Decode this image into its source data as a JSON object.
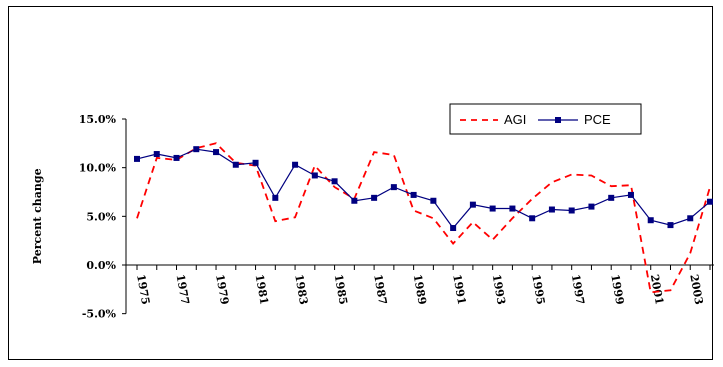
{
  "chart_data": {
    "type": "line",
    "title": "",
    "xlabel": "",
    "ylabel": "Percent change",
    "ylim": [
      -5,
      15
    ],
    "yticks": [
      "15.0%",
      "10.0%",
      "5.0%",
      "0.0%",
      "-5.0%"
    ],
    "yticks_values": [
      15,
      10,
      5,
      0,
      -5
    ],
    "x_labels": [
      "1975",
      "1977",
      "1979",
      "1981",
      "1983",
      "1985",
      "1987",
      "1989",
      "1991",
      "1993",
      "1995",
      "1997",
      "1999",
      "2001",
      "2003"
    ],
    "x_years": [
      1975,
      1976,
      1977,
      1978,
      1979,
      1980,
      1981,
      1982,
      1983,
      1984,
      1985,
      1986,
      1987,
      1988,
      1989,
      1990,
      1991,
      1992,
      1993,
      1994,
      1995,
      1996,
      1997,
      1998,
      1999,
      2000,
      2001,
      2002,
      2003,
      2004
    ],
    "legend_position": "top-right",
    "grid": false,
    "series": [
      {
        "name": "AGI",
        "color": "#ff0000",
        "style": "dashed",
        "values": [
          4.8,
          11.0,
          10.8,
          12.0,
          12.5,
          10.5,
          10.2,
          4.5,
          4.9,
          10.2,
          8.0,
          6.8,
          11.6,
          11.3,
          5.6,
          4.8,
          2.2,
          4.4,
          2.6,
          4.8,
          6.8,
          8.5,
          9.3,
          9.2,
          8.1,
          8.2,
          -2.8,
          -2.6,
          1.2,
          8.0
        ]
      },
      {
        "name": "PCE",
        "color": "#000080",
        "style": "solid-marker",
        "values": [
          10.9,
          11.4,
          11.0,
          11.9,
          11.6,
          10.3,
          10.5,
          6.9,
          10.3,
          9.2,
          8.6,
          6.6,
          6.9,
          8.0,
          7.2,
          6.6,
          3.8,
          6.2,
          5.8,
          5.8,
          4.8,
          5.7,
          5.6,
          6.0,
          6.9,
          7.2,
          4.6,
          4.1,
          4.8,
          6.5
        ]
      }
    ]
  }
}
